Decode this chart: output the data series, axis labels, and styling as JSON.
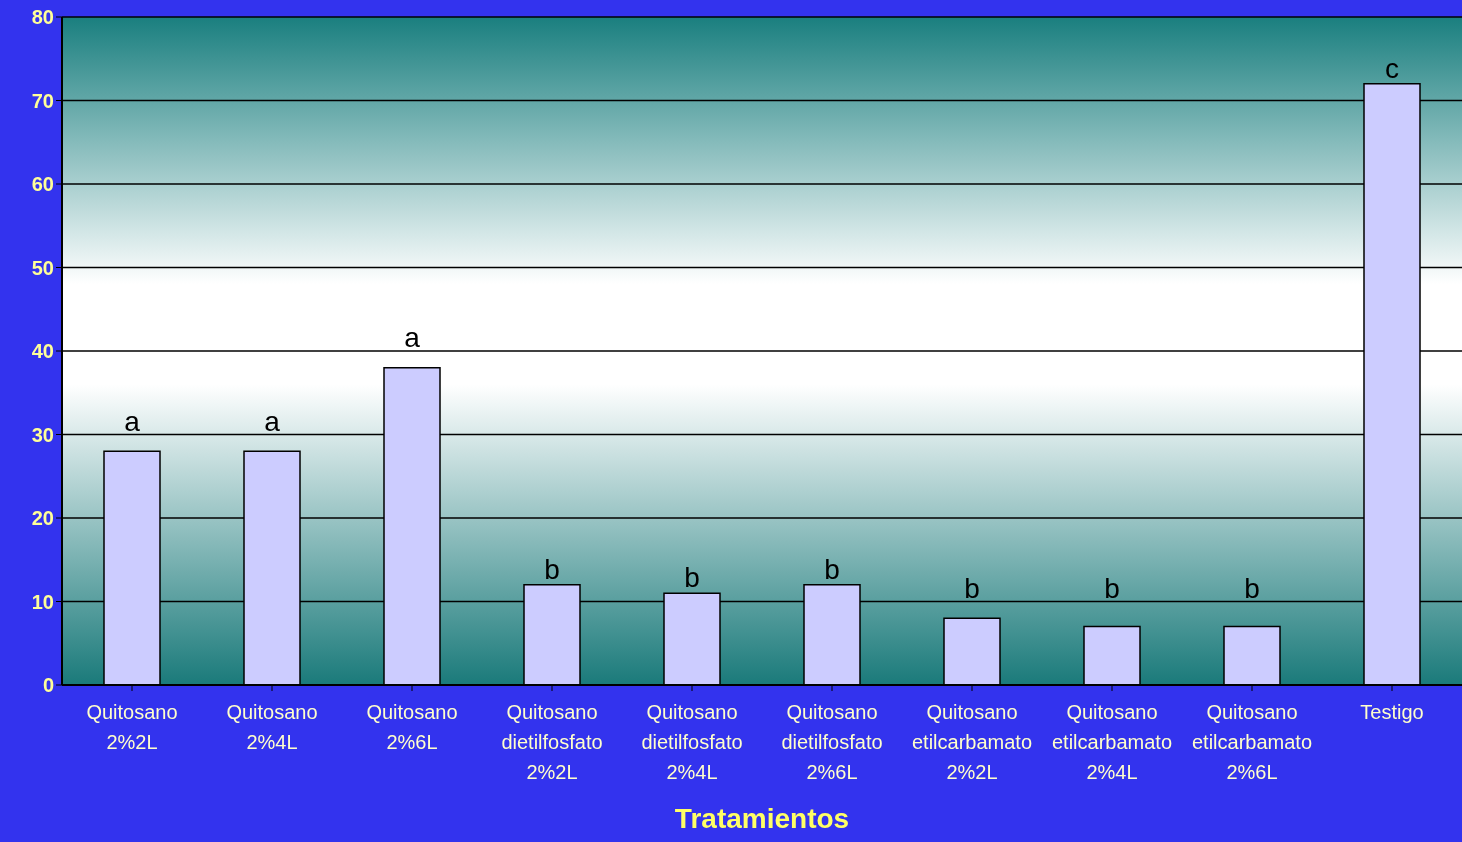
{
  "chart_data": {
    "type": "bar",
    "xlabel": "Tratamientos",
    "categories": [
      "Quitosano 2%2L",
      "Quitosano 2%4L",
      "Quitosano 2%6L",
      "Quitosano dietilfosfato 2%2L",
      "Quitosano dietilfosfato 2%4L",
      "Quitosano dietilfosfato 2%6L",
      "Quitosano etilcarbamato 2%2L",
      "Quitosano etilcarbamato 2%4L",
      "Quitosano etilcarbamato 2%6L",
      "Testigo"
    ],
    "values": [
      28,
      28,
      38,
      12,
      11,
      12,
      8,
      7,
      7,
      72
    ],
    "color": "#ccccff",
    "ylim": [
      0,
      80
    ],
    "yticks": [
      0,
      10,
      20,
      30,
      40,
      50,
      60,
      70,
      80
    ],
    "grid": "y",
    "legend": false,
    "annotations": [
      {
        "text": "a",
        "x": "Quitosano 2%2L",
        "y": 28
      },
      {
        "text": "a",
        "x": "Quitosano 2%4L",
        "y": 28
      },
      {
        "text": "a",
        "x": "Quitosano 2%6L",
        "y": 38
      },
      {
        "text": "b",
        "x": "Quitosano dietilfosfato 2%2L",
        "y": 12
      },
      {
        "text": "b",
        "x": "Quitosano dietilfosfato 2%4L",
        "y": 11
      },
      {
        "text": "b",
        "x": "Quitosano dietilfosfato 2%6L",
        "y": 12
      },
      {
        "text": "b",
        "x": "Quitosano etilcarbamato 2%2L",
        "y": 8
      },
      {
        "text": "b",
        "x": "Quitosano etilcarbamato 2%4L",
        "y": 7
      },
      {
        "text": "b",
        "x": "Quitosano etilcarbamato 2%6L",
        "y": 7
      },
      {
        "text": "c",
        "x": "Testigo",
        "y": 72
      }
    ]
  }
}
